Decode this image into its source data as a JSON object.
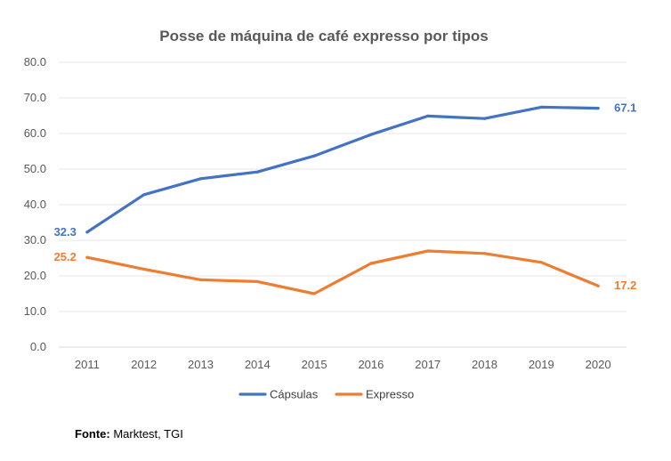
{
  "chart_data": {
    "type": "line",
    "title": "Posse de máquina de café expresso por tipos",
    "categories": [
      "2011",
      "2012",
      "2013",
      "2014",
      "2015",
      "2016",
      "2017",
      "2018",
      "2019",
      "2020"
    ],
    "series": [
      {
        "name": "Cápsulas",
        "color": "#4472C4",
        "values": [
          32.3,
          42.8,
          47.3,
          49.2,
          53.7,
          59.7,
          64.9,
          64.2,
          67.4,
          67.1
        ]
      },
      {
        "name": "Expresso",
        "color": "#ED7D31",
        "values": [
          25.2,
          21.9,
          18.9,
          18.4,
          15.0,
          23.5,
          27.0,
          26.3,
          23.8,
          17.2
        ]
      }
    ],
    "ylim": [
      0,
      80
    ],
    "yticks": [
      0,
      10,
      20,
      30,
      40,
      50,
      60,
      70,
      80
    ],
    "ytick_labels": [
      "0.0",
      "10.0",
      "20.0",
      "30.0",
      "40.0",
      "50.0",
      "60.0",
      "70.0",
      "80.0"
    ],
    "data_labels": [
      {
        "series": 0,
        "index": 0,
        "text": "32.3"
      },
      {
        "series": 0,
        "index": 9,
        "text": "67.1"
      },
      {
        "series": 1,
        "index": 0,
        "text": "25.2"
      },
      {
        "series": 1,
        "index": 9,
        "text": "17.2"
      }
    ],
    "legend_position": "bottom",
    "grid": true,
    "xlabel": "",
    "ylabel": ""
  },
  "source": {
    "label": "Fonte:",
    "text": " Marktest, TGI"
  }
}
